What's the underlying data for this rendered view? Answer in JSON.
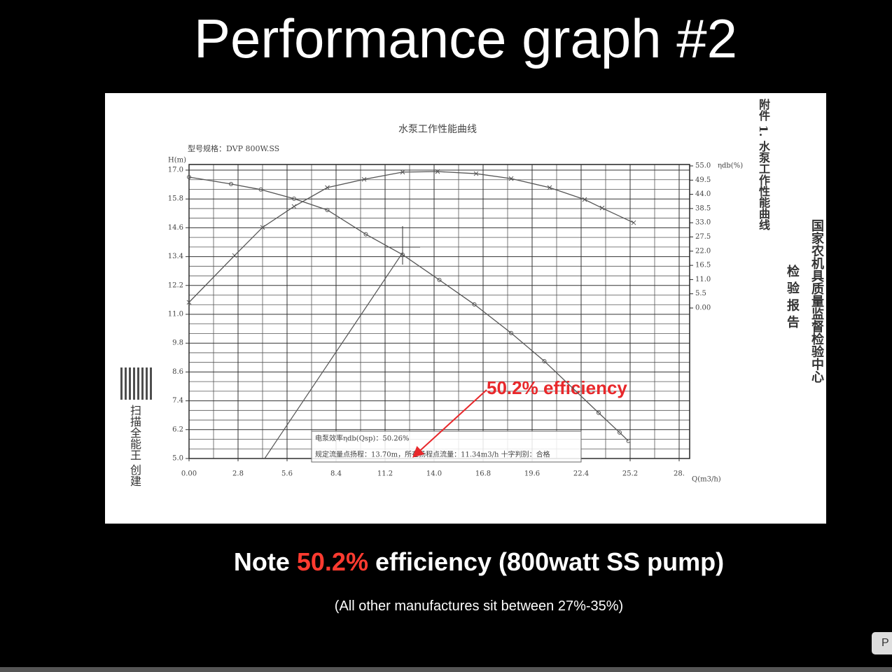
{
  "slide": {
    "title": "Performance graph #2",
    "note": {
      "before": "Note ",
      "highlight": "50.2%",
      "after": " efficiency (800watt SS pump)"
    },
    "subnote": "(All other manufactures sit between 27%-35%)",
    "side_button": "P"
  },
  "scan": {
    "attachment_label": "附件 1. 水泵工作性能曲线",
    "agency": "国家农机具质量监督检验中心",
    "report": "检 验 报 告",
    "watermark": "扫描全能王 创建",
    "callout": "50.2% efficiency"
  },
  "chart_data": {
    "type": "line",
    "title": "水泵工作性能曲线",
    "subtitle": "型号规格：DVP 800W.SS",
    "xlabel": "Q(m3/h)",
    "ylabel": "H(m)",
    "y2label": "ηdb(%)",
    "annotations": [
      "电泵效率ηdb(Qsp)：50.26%",
      "规定流量点扬程：13.70m，所在扬程点流量：11.34m3/h  十字判别：合格"
    ],
    "xlim": [
      0,
      28
    ],
    "xticks": [
      {
        "value": 0,
        "label": "0.00"
      },
      2.8,
      5.6,
      8.4,
      11.2,
      {
        "value": 14,
        "label": "14.0"
      },
      16.8,
      19.6,
      22.4,
      25.2,
      {
        "value": 28,
        "label": "28."
      }
    ],
    "ylim": [
      5,
      17
    ],
    "yticks": [
      {
        "value": 5,
        "label": "5.0"
      },
      6.2,
      7.4,
      8.6,
      9.8,
      {
        "value": 11,
        "label": "11.0"
      },
      12.2,
      13.4,
      14.6,
      15.8,
      {
        "value": 17,
        "label": "17.0"
      }
    ],
    "y2lim": [
      0,
      55
    ],
    "y2ticks": [
      {
        "value": 0,
        "label": "0.00"
      },
      5.5,
      {
        "value": 11,
        "label": "11.0"
      },
      16.5,
      {
        "value": 22,
        "label": "22.0"
      },
      27.5,
      {
        "value": 33,
        "label": "33.0"
      },
      38.5,
      {
        "value": 44,
        "label": "44.0"
      },
      49.5,
      {
        "value": 55,
        "label": "55.0"
      }
    ],
    "grid": true,
    "series": [
      {
        "color": "#555555",
        "marker": "circle",
        "x": [
          0,
          2.4,
          4.1,
          6.0,
          7.9,
          10.1,
          12.2,
          14.3,
          16.3,
          18.4,
          20.3,
          23.4,
          24.6,
          25.1
        ],
        "values": [
          16.71,
          16.42,
          16.19,
          15.81,
          15.34,
          14.33,
          13.48,
          12.43,
          11.41,
          10.22,
          9.05,
          6.9,
          6.08,
          5.73
        ]
      },
      {
        "color": "#555555",
        "marker": "cross",
        "axis": "y2",
        "x": [
          0,
          2.6,
          4.2,
          6.0,
          7.9,
          10.0,
          12.2,
          14.2,
          16.4,
          18.4,
          20.6,
          22.6,
          23.6,
          25.4
        ],
        "values": [
          2.2,
          20.3,
          31.2,
          39.3,
          46.6,
          49.8,
          52.6,
          52.8,
          52.0,
          50.1,
          46.6,
          42.0,
          38.7,
          33.0
        ]
      }
    ]
  }
}
